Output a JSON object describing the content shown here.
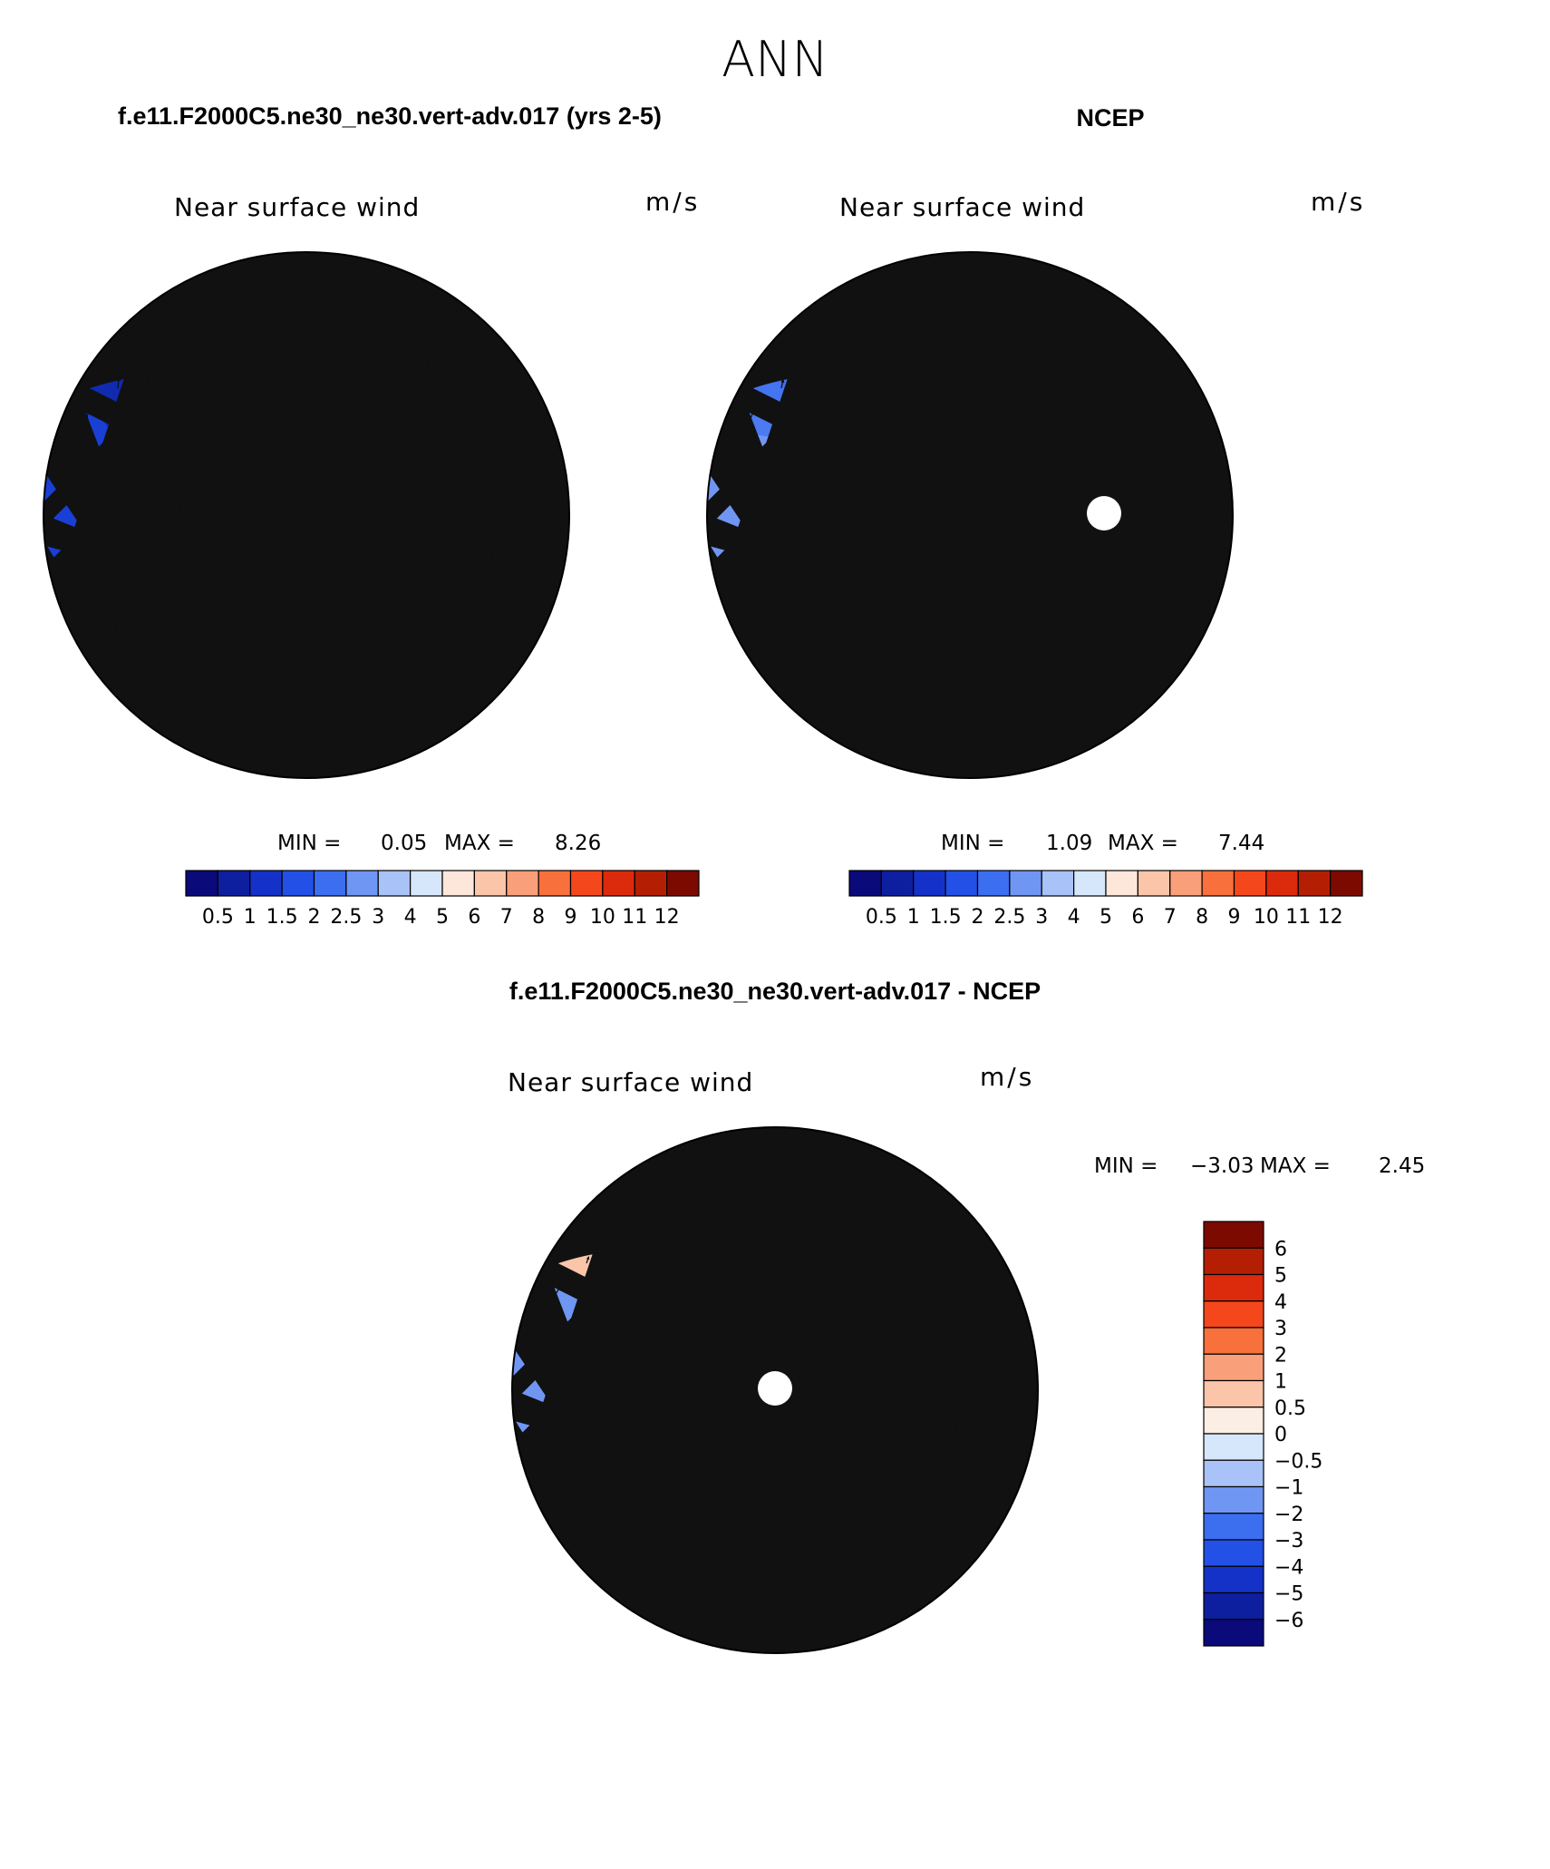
{
  "page_title": "ANN",
  "colors": {
    "seq_scale": [
      "#0a0a7a",
      "#0d1f9e",
      "#1432c8",
      "#2350e6",
      "#3c6ef0",
      "#7096f4",
      "#a9c2f7",
      "#d6e6fb",
      "#fde7da",
      "#fbc5aa",
      "#f99f7a",
      "#f8703c",
      "#f4481c",
      "#dc2a0c",
      "#b41f04",
      "#7d0a00"
    ],
    "diff_scale": [
      "#0a0a7a",
      "#0d1f9e",
      "#1432c8",
      "#2350e6",
      "#3c6ef0",
      "#7096f4",
      "#a9c2f7",
      "#d6e6fb",
      "#fbeee4",
      "#fbc5aa",
      "#f99f7a",
      "#f8703c",
      "#f4481c",
      "#dc2a0c",
      "#b41f04",
      "#7d0a00"
    ],
    "land_lines": "#111111"
  },
  "panels": [
    {
      "id": "model",
      "header": "f.e11.F2000C5.ne30_ne30.vert-adv.017 (yrs 2-5)",
      "variable": "Near surface wind",
      "units": "m/s",
      "min_label": "MIN =",
      "min_value": "0.05",
      "max_label": "MAX =",
      "max_value": "8.26",
      "colorbar_labels": [
        "0.5",
        "1",
        "1.5",
        "2",
        "2.5",
        "3",
        "4",
        "5",
        "6",
        "7",
        "8",
        "9",
        "10",
        "11",
        "12"
      ],
      "map_theme": "low-wind dominated (dark blue) with a strong wind maximum over Greenland"
    },
    {
      "id": "obs",
      "header": "NCEP",
      "variable": "Near surface wind",
      "units": "m/s",
      "min_label": "MIN =",
      "min_value": "1.09",
      "max_label": "MAX =",
      "max_value": "7.44",
      "colorbar_labels": [
        "0.5",
        "1",
        "1.5",
        "2",
        "2.5",
        "3",
        "4",
        "5",
        "6",
        "7",
        "8",
        "9",
        "10",
        "11",
        "12"
      ],
      "map_theme": "moderate winds (medium blue) with a wind maximum over Greenland and a pole hole"
    },
    {
      "id": "diff",
      "header": "f.e11.F2000C5.ne30_ne30.vert-adv.017 - NCEP",
      "variable": "Near surface wind",
      "units": "m/s",
      "min_label": "MIN =",
      "min_value": "−3.03",
      "max_label": "MAX =",
      "max_value": "2.45",
      "colorbar_labels": [
        "6",
        "5",
        "4",
        "3",
        "2",
        "1",
        "0.5",
        "0",
        "−0.5",
        "−1",
        "−2",
        "−3",
        "−4",
        "−5",
        "−6"
      ],
      "map_theme": "mostly negative differences (light-medium blue) with positive patches over Greenland"
    }
  ]
}
